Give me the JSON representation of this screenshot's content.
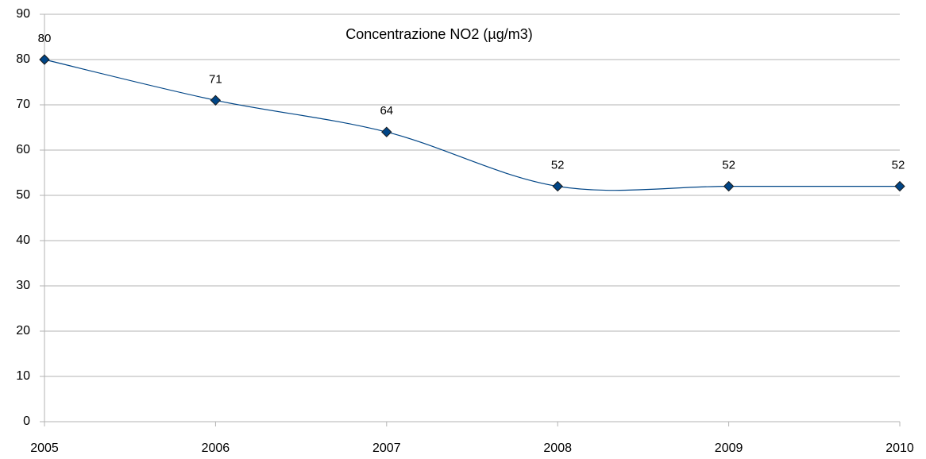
{
  "chart_data": {
    "type": "line",
    "title": "Concentrazione NO2 (µg/m3)",
    "x": [
      2005,
      2006,
      2007,
      2008,
      2009,
      2010
    ],
    "values": [
      80,
      71,
      64,
      52,
      52,
      52
    ],
    "color": "#004586",
    "xlim": [
      2005,
      2010
    ],
    "xticks": [
      2005,
      2006,
      2007,
      2008,
      2009,
      2010
    ],
    "ylim": [
      0,
      90
    ],
    "yticks": [
      0,
      10,
      20,
      30,
      40,
      50,
      60,
      70,
      80,
      90
    ],
    "grid": true,
    "smooth": true,
    "data_labels": true
  }
}
